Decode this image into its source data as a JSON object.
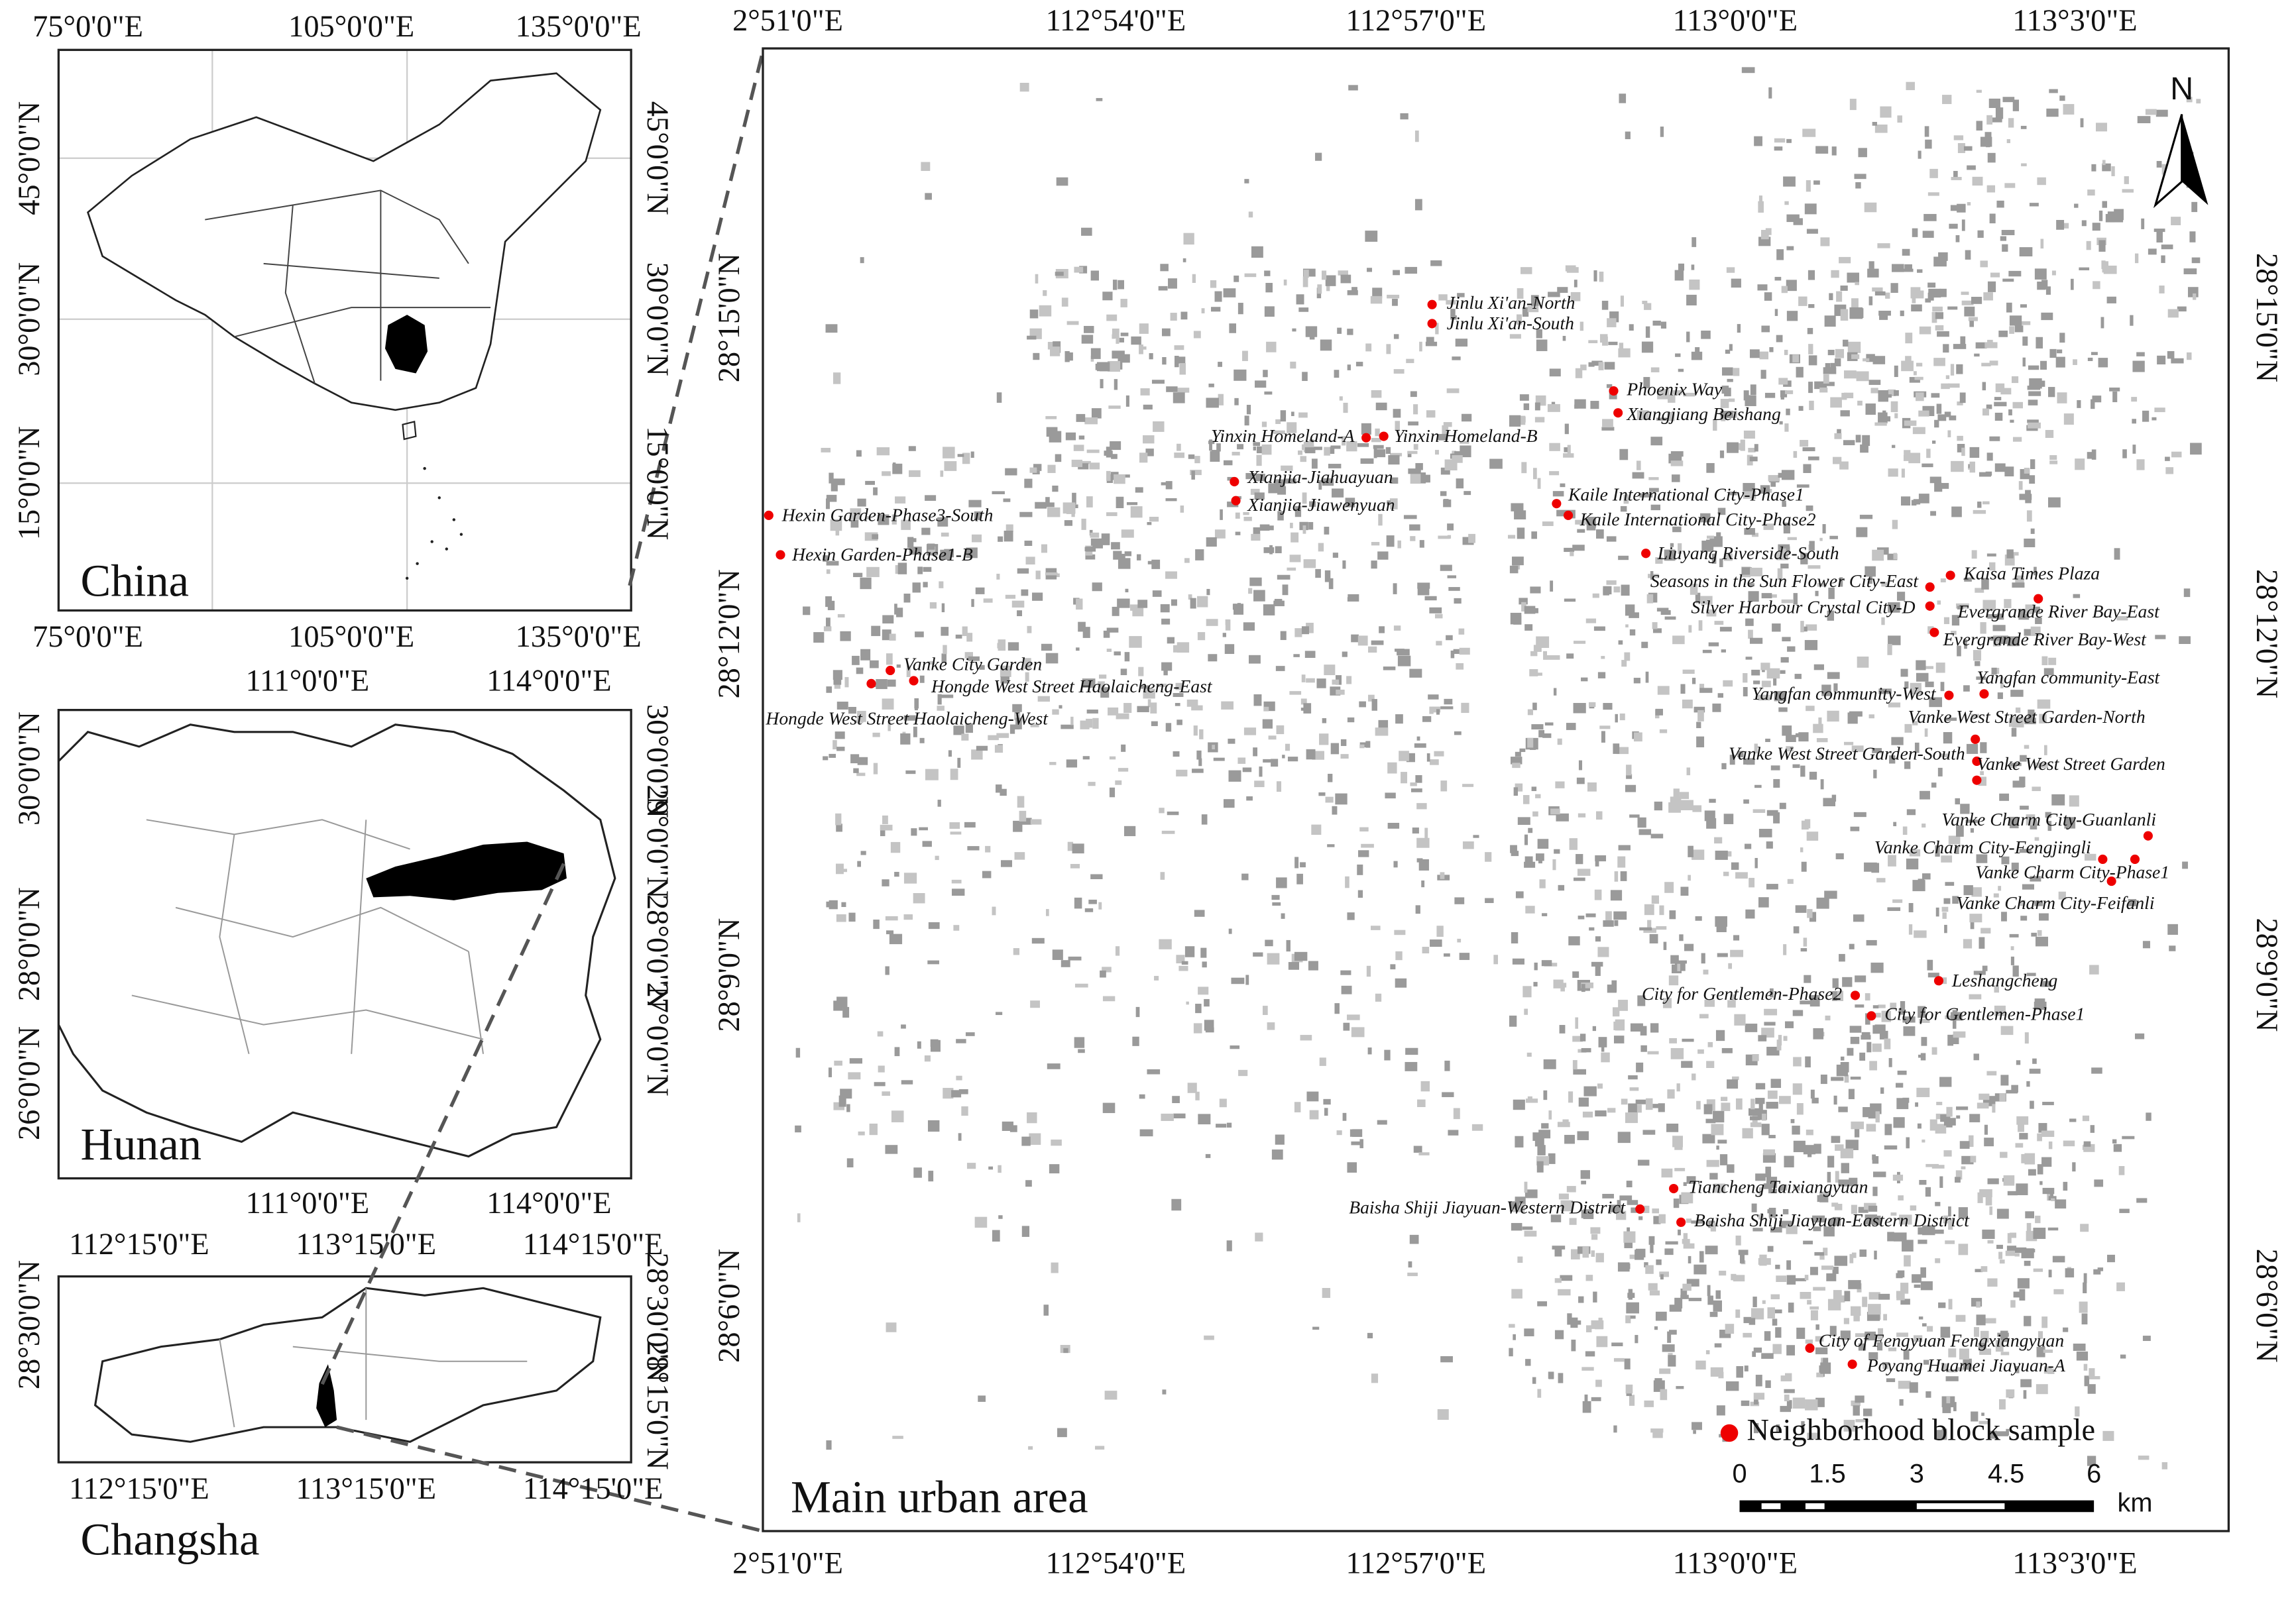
{
  "insets": [
    {
      "label": "China",
      "top_ticks": [
        "75°0'0\"E",
        "105°0'0\"E",
        "135°0'0\"E"
      ],
      "bottom_ticks": [
        "75°0'0\"E",
        "105°0'0\"E",
        "135°0'0\"E"
      ],
      "left_ticks": [
        "45°0'0\"N",
        "30°0'0\"N",
        "15°0'0\"N"
      ],
      "right_ticks": [
        "45°0'0\"N",
        "30°0'0\"N",
        "15°0'0\"N"
      ]
    },
    {
      "label": "Hunan",
      "top_ticks": [
        "111°0'0\"E",
        "114°0'0\"E"
      ],
      "bottom_ticks": [
        "111°0'0\"E",
        "114°0'0\"E"
      ],
      "left_ticks": [
        "30°0'0\"N",
        "28°0'0\"N",
        "26°0'0\"N"
      ],
      "right_ticks": [
        "30°0'0\"N",
        "29°0'0\"N",
        "28°0'0\"N",
        "27°0'0\"N"
      ]
    },
    {
      "label": "Changsha",
      "top_ticks": [
        "112°15'0\"E",
        "113°15'0\"E",
        "114°15'0\"E"
      ],
      "bottom_ticks": [
        "112°15'0\"E",
        "113°15'0\"E",
        "114°15'0\"E"
      ],
      "left_ticks": [
        "28°30'0\"N"
      ],
      "right_ticks": [
        "28°30'0\"N",
        "28°15'0\"N"
      ]
    }
  ],
  "main": {
    "label": "Main urban area",
    "top_ticks": [
      "2°51'0\"E",
      "112°54'0\"E",
      "112°57'0\"E",
      "113°0'0\"E",
      "113°3'0\"E"
    ],
    "bottom_ticks": [
      "2°51'0\"E",
      "112°54'0\"E",
      "112°57'0\"E",
      "113°0'0\"E",
      "113°3'0\"E"
    ],
    "left_ticks": [
      "28°15'0\"N",
      "28°12'0\"N",
      "28°9'0\"N",
      "28°6'0\"N"
    ],
    "right_ticks": [
      "28°15'0\"N",
      "28°12'0\"N",
      "28°9'0\"N",
      "28°6'0\"N"
    ],
    "north": "N",
    "legend": "Neighborhood block sample",
    "scale_labels": [
      "0",
      "1.5",
      "3",
      "4.5",
      "6"
    ],
    "scale_unit": "km",
    "samples": [
      "Jinlu Xi'an-North",
      "Jinlu Xi'an-South",
      "Phoenix Way",
      "Xiangjiang Beishang",
      "Yinxin Homeland-A",
      "Yinxin Homeland-B",
      "Xianjia-Jiahuayuan",
      "Xianjia-Jiawenyuan",
      "Kaile International City-Phase1",
      "Kaile International City-Phase2",
      "Hexin Garden-Phase3-South",
      "Hexin Garden-Phase1-B",
      "Liuyang Riverside-South",
      "Kaisa Times Plaza",
      "Seasons in the Sun Flower City-East",
      "Silver Harbour Crystal City-D",
      "Evergrande River Bay-East",
      "Evergrande River Bay-West",
      "Yangfan community-West",
      "Yangfan community-East",
      "Vanke West Street Garden-North",
      "Vanke West Street Garden-South",
      "Vanke West Street Garden",
      "Vanke Charm City-Guanlanli",
      "Vanke Charm City-Fengjingli",
      "Vanke Charm City-Phase1",
      "Vanke Charm City-Feifanli",
      "Vanke City Garden",
      "Hongde West Street Haolaicheng-East",
      "Hongde West Street Haolaicheng-West",
      "Leshangcheng",
      "City for Gentlemen-Phase2",
      "City for Gentlemen-Phase1",
      "Tiancheng Taixiangyuan",
      "Baisha Shiji Jiayuan-Western District",
      "Baisha Shiji Jiayuan-Eastern District",
      "City of Fengyuan Fengxiangyuan",
      "Poyang Huamei Jiayuan-A"
    ]
  }
}
